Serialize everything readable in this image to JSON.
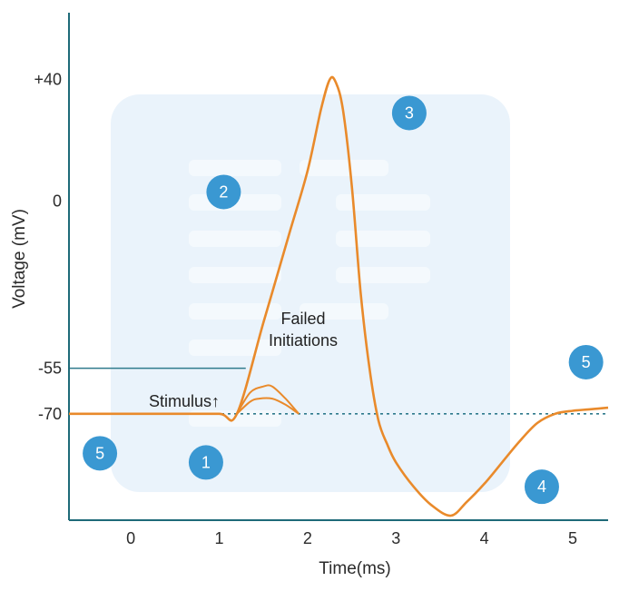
{
  "chart_data": {
    "type": "line",
    "title": "",
    "xlabel": "Time(ms)",
    "ylabel": "Voltage (mV)",
    "xlim": [
      -0.7,
      5.4
    ],
    "ylim": [
      -105,
      62
    ],
    "x_ticks": [
      {
        "value": 0,
        "label": "0"
      },
      {
        "value": 1,
        "label": "1"
      },
      {
        "value": 2,
        "label": "2"
      },
      {
        "value": 3,
        "label": "3"
      },
      {
        "value": 4,
        "label": "4"
      },
      {
        "value": 5,
        "label": "5"
      }
    ],
    "y_ticks": [
      {
        "value": 40,
        "label": "+40"
      },
      {
        "value": 0,
        "label": "0"
      },
      {
        "value": -55,
        "label": "-55"
      },
      {
        "value": -70,
        "label": "-70"
      }
    ],
    "grid": false,
    "series": [
      {
        "color": "#e98a2b",
        "x": [
          -0.7,
          0.0,
          0.5,
          1.0,
          1.2,
          1.5,
          1.8,
          2.0,
          2.15,
          2.25,
          2.32,
          2.4,
          2.5,
          2.6,
          2.7,
          2.8,
          2.9,
          3.0,
          3.2,
          3.4,
          3.62,
          3.8,
          4.0,
          4.2,
          4.4,
          4.6,
          4.8,
          5.0,
          5.2,
          5.4
        ],
        "y": [
          -70,
          -70,
          -70,
          -70,
          -70,
          -40,
          -10,
          10,
          30,
          40,
          39,
          30,
          5,
          -30,
          -55,
          -72,
          -80,
          -86,
          -94,
          -100,
          -103.5,
          -99,
          -93,
          -86,
          -79,
          -73,
          -70,
          -69,
          -68.5,
          -68
        ]
      }
    ],
    "failed_initiations": [
      {
        "x": [
          1.2,
          1.35,
          1.5,
          1.6,
          1.75,
          1.9
        ],
        "y": [
          -70,
          -63,
          -61,
          -61,
          -65,
          -70
        ]
      },
      {
        "x": [
          1.2,
          1.35,
          1.45,
          1.6,
          1.75,
          1.9
        ],
        "y": [
          -70,
          -66,
          -65,
          -65,
          -67,
          -70
        ]
      }
    ],
    "reference_lines": [
      {
        "orientation": "horizontal",
        "value": -70,
        "style": "dotted",
        "color": "#2f7a8c"
      },
      {
        "orientation": "horizontal",
        "value": -55,
        "style": "solid",
        "color": "#2f7a8c",
        "x_range": [
          -0.7,
          1.3
        ]
      }
    ],
    "annotations": {
      "failed": [
        "Failed",
        "Initiations"
      ],
      "stimulus": "Stimulus↑"
    },
    "phase_markers": [
      {
        "label": "1",
        "x": 0.85,
        "y": -86
      },
      {
        "label": "2",
        "x": 1.05,
        "y": 3
      },
      {
        "label": "3",
        "x": 3.15,
        "y": 29
      },
      {
        "label": "4",
        "x": 4.65,
        "y": -94
      },
      {
        "label": "5",
        "x": -0.35,
        "y": -83
      },
      {
        "label": "5",
        "x": 5.15,
        "y": -53
      }
    ],
    "colors": {
      "axis": "#1e6a78",
      "trace": "#e98a2b",
      "marker": "#3a98d2",
      "panel": "#eaf3fb"
    }
  }
}
